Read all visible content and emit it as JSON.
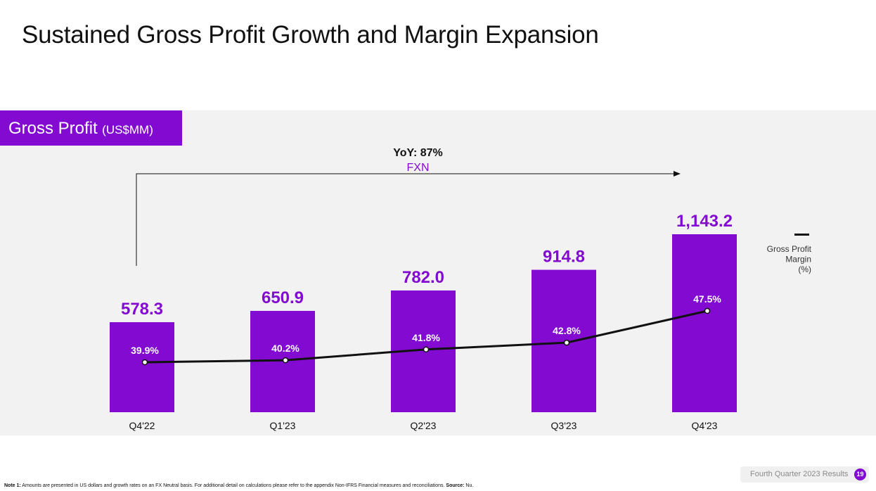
{
  "page": {
    "title": "Sustained Gross Profit Growth and Margin Expansion",
    "section_title": "Gross Profit",
    "section_unit": "(US$MM)",
    "footnote_prefix": "Note 1:",
    "footnote_text": " Amounts are presented in US dollars and growth rates on an FX Neutral basis. For additional detail on calculations please refer to the appendix Non-IFRS Financial measures and reconciliations. ",
    "footnote_source_label": "Source:",
    "footnote_source": " Nu.",
    "footer_label": "Fourth Quarter 2023 Results",
    "page_number": "19"
  },
  "chart_data": {
    "type": "bar",
    "categories": [
      "Q4'22",
      "Q1'23",
      "Q2'23",
      "Q3'23",
      "Q4'23"
    ],
    "series": [
      {
        "name": "Gross Profit",
        "type": "bar",
        "values": [
          578.3,
          650.9,
          782.0,
          914.8,
          1143.2
        ],
        "labels": [
          "578.3",
          "650.9",
          "782.0",
          "914.8",
          "1,143.2"
        ],
        "color": "#820ad1"
      },
      {
        "name": "Gross Profit Margin (%)",
        "type": "line",
        "values": [
          39.9,
          40.2,
          41.8,
          42.8,
          47.5
        ],
        "labels": [
          "39.9%",
          "40.2%",
          "41.8%",
          "42.8%",
          "47.5%"
        ],
        "color": "#111111"
      }
    ],
    "annotation": {
      "line1": "YoY: 87%",
      "line2": "FXN",
      "from": "Q4'22",
      "to": "Q4'23"
    },
    "legend": {
      "lines": [
        "Gross Profit",
        "Margin",
        "(%)"
      ],
      "placement": "right"
    },
    "colors": {
      "accent": "#820ad1",
      "line": "#111111"
    }
  }
}
